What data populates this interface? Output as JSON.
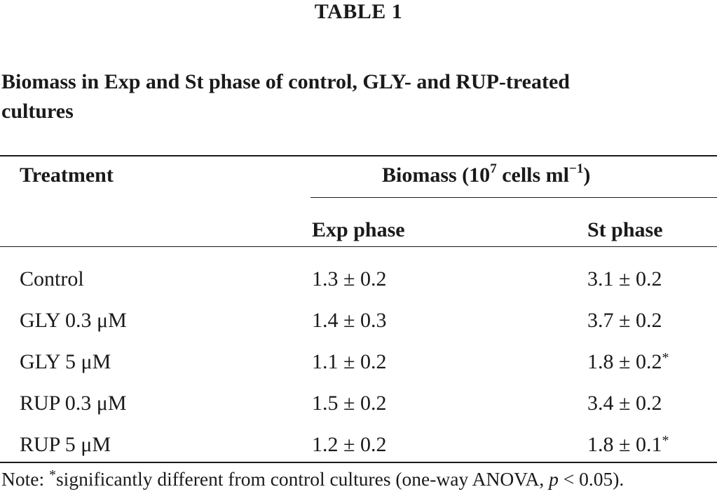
{
  "table": {
    "number": "TABLE 1",
    "caption_line1": "Biomass in Exp and St phase of control, GLY- and RUP-treated",
    "caption_line2": "cultures",
    "header": {
      "treatment": "Treatment",
      "group_label_pre": "Biomass (10",
      "group_label_exp": "7",
      "group_label_mid": " cells ml",
      "group_label_exp2": "−1",
      "group_label_post": ")",
      "exp_phase": "Exp phase",
      "st_phase": "St phase"
    },
    "rows": [
      {
        "treatment": "Control",
        "exp": "1.3 ± 0.2",
        "st": "3.1 ± 0.2",
        "st_mark": ""
      },
      {
        "treatment": "GLY 0.3 μM",
        "exp": "1.4 ± 0.3",
        "st": "3.7 ± 0.2",
        "st_mark": ""
      },
      {
        "treatment": "GLY 5 μM",
        "exp": "1.1 ± 0.2",
        "st": "1.8 ± 0.2",
        "st_mark": "*"
      },
      {
        "treatment": "RUP 0.3 μM",
        "exp": "1.5 ± 0.2",
        "st": "3.4 ± 0.2",
        "st_mark": ""
      },
      {
        "treatment": "RUP 5 μM",
        "exp": "1.2 ± 0.2",
        "st": "1.8 ± 0.1",
        "st_mark": "*"
      }
    ],
    "note": {
      "prefix": "Note: ",
      "star": "*",
      "text_a": "significantly different from control cultures (one-way ANOVA, ",
      "p": "p",
      "text_b": " < 0.05)."
    }
  }
}
